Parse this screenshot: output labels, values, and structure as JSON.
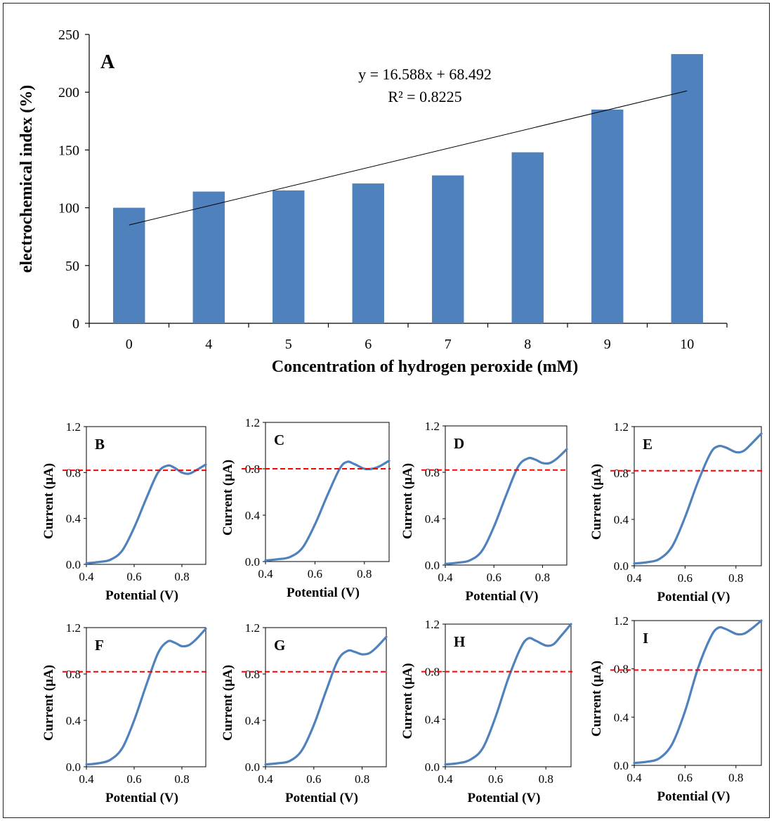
{
  "chart_data": [
    {
      "type": "bar",
      "panel_label": "A",
      "categories": [
        "0",
        "4",
        "5",
        "6",
        "7",
        "8",
        "9",
        "10"
      ],
      "values": [
        100,
        114,
        115,
        121,
        128,
        148,
        185,
        233
      ],
      "xlabel": "Concentration of hydrogen peroxide (mM)",
      "ylabel": "electrochemical index (%)",
      "ylim": [
        0,
        250
      ],
      "yticks": [
        "0",
        "50",
        "100",
        "150",
        "200",
        "250"
      ],
      "bar_color": "#4f81bd",
      "grid": false,
      "trendline": {
        "type": "linear",
        "slope": 16.588,
        "intercept": 68.492,
        "equation": "y = 16.588x + 68.492",
        "r_squared": "R² = 0.8225",
        "color": "#000000"
      }
    },
    {
      "type": "line",
      "panel_label": "B",
      "xlabel": "Potential (V)",
      "ylabel": "Current  (µA)",
      "xlim": [
        0.4,
        0.9
      ],
      "ylim": [
        0,
        1.2
      ],
      "xticks": [
        "0.4",
        "0.6",
        "0.8"
      ],
      "yticks": [
        "0.0",
        "0.4",
        "0.8",
        "1.2"
      ],
      "reference_line": 0.82,
      "line_color": "#4f81bd",
      "ref_color": "#ff0000",
      "series": [
        {
          "x": [
            0.4,
            0.45,
            0.5,
            0.55,
            0.6,
            0.65,
            0.7,
            0.74,
            0.77,
            0.8,
            0.83,
            0.86,
            0.9
          ],
          "y": [
            0.01,
            0.02,
            0.04,
            0.12,
            0.32,
            0.57,
            0.8,
            0.86,
            0.84,
            0.8,
            0.79,
            0.82,
            0.87
          ]
        }
      ]
    },
    {
      "type": "line",
      "panel_label": "C",
      "xlabel": "Potential (V)",
      "ylabel": "Current  (µA)",
      "xlim": [
        0.4,
        0.9
      ],
      "ylim": [
        0,
        1.2
      ],
      "xticks": [
        "0.4",
        "0.6",
        "0.8"
      ],
      "yticks": [
        "0.0",
        "0.4",
        "0.8",
        "1.2"
      ],
      "reference_line": 0.8,
      "line_color": "#4f81bd",
      "ref_color": "#ff0000",
      "series": [
        {
          "x": [
            0.4,
            0.45,
            0.5,
            0.55,
            0.6,
            0.65,
            0.7,
            0.73,
            0.76,
            0.8,
            0.83,
            0.86,
            0.9
          ],
          "y": [
            0.01,
            0.02,
            0.04,
            0.12,
            0.32,
            0.57,
            0.8,
            0.86,
            0.84,
            0.8,
            0.8,
            0.82,
            0.87
          ]
        }
      ]
    },
    {
      "type": "line",
      "panel_label": "D",
      "xlabel": "Potential (V)",
      "ylabel": "Current  (µA)",
      "xlim": [
        0.4,
        0.9
      ],
      "ylim": [
        0,
        1.2
      ],
      "xticks": [
        "0.4",
        "0.6",
        "0.8"
      ],
      "yticks": [
        "0.0",
        "0.4",
        "0.8",
        "1.2"
      ],
      "reference_line": 0.82,
      "line_color": "#4f81bd",
      "ref_color": "#ff0000",
      "series": [
        {
          "x": [
            0.4,
            0.45,
            0.5,
            0.55,
            0.6,
            0.65,
            0.7,
            0.74,
            0.77,
            0.8,
            0.83,
            0.86,
            0.9
          ],
          "y": [
            0.01,
            0.02,
            0.04,
            0.12,
            0.33,
            0.6,
            0.85,
            0.92,
            0.91,
            0.88,
            0.88,
            0.92,
            1.0
          ]
        }
      ]
    },
    {
      "type": "line",
      "panel_label": "E",
      "xlabel": "Potential (V)",
      "ylabel": "Current  (µA)",
      "xlim": [
        0.4,
        0.9
      ],
      "ylim": [
        0,
        1.2
      ],
      "xticks": [
        "0.4",
        "0.6",
        "0.8"
      ],
      "yticks": [
        "0.0",
        "0.4",
        "0.8",
        "1.2"
      ],
      "reference_line": 0.82,
      "line_color": "#4f81bd",
      "ref_color": "#ff0000",
      "series": [
        {
          "x": [
            0.4,
            0.45,
            0.5,
            0.55,
            0.6,
            0.65,
            0.7,
            0.73,
            0.76,
            0.8,
            0.83,
            0.86,
            0.9
          ],
          "y": [
            0.02,
            0.03,
            0.06,
            0.17,
            0.42,
            0.72,
            0.97,
            1.03,
            1.02,
            0.98,
            0.99,
            1.05,
            1.14
          ]
        }
      ]
    },
    {
      "type": "line",
      "panel_label": "F",
      "xlabel": "Potential (V)",
      "ylabel": "Current  (µA)",
      "xlim": [
        0.4,
        0.9
      ],
      "ylim": [
        0,
        1.2
      ],
      "xticks": [
        "0.4",
        "0.6",
        "0.8"
      ],
      "yticks": [
        "0.0",
        "0.4",
        "0.8",
        "1.2"
      ],
      "reference_line": 0.82,
      "line_color": "#4f81bd",
      "ref_color": "#ff0000",
      "series": [
        {
          "x": [
            0.4,
            0.45,
            0.5,
            0.55,
            0.6,
            0.65,
            0.7,
            0.74,
            0.77,
            0.8,
            0.83,
            0.86,
            0.9
          ],
          "y": [
            0.02,
            0.03,
            0.06,
            0.16,
            0.4,
            0.7,
            0.98,
            1.08,
            1.07,
            1.04,
            1.05,
            1.1,
            1.19
          ]
        }
      ]
    },
    {
      "type": "line",
      "panel_label": "G",
      "xlabel": "Potential (V)",
      "ylabel": "Current  (µA)",
      "xlim": [
        0.4,
        0.9
      ],
      "ylim": [
        0,
        1.2
      ],
      "xticks": [
        "0.4",
        "0.6",
        "0.8"
      ],
      "yticks": [
        "0.0",
        "0.4",
        "0.8",
        "1.2"
      ],
      "reference_line": 0.82,
      "line_color": "#4f81bd",
      "ref_color": "#ff0000",
      "series": [
        {
          "x": [
            0.4,
            0.45,
            0.5,
            0.55,
            0.6,
            0.65,
            0.7,
            0.74,
            0.77,
            0.8,
            0.83,
            0.86,
            0.9
          ],
          "y": [
            0.02,
            0.03,
            0.05,
            0.14,
            0.36,
            0.65,
            0.92,
            1.0,
            0.99,
            0.97,
            0.98,
            1.03,
            1.12
          ]
        }
      ]
    },
    {
      "type": "line",
      "panel_label": "H",
      "xlabel": "Potential (V)",
      "ylabel": "Current  (µA)",
      "xlim": [
        0.4,
        0.9
      ],
      "ylim": [
        0,
        1.2
      ],
      "xticks": [
        "0.4",
        "0.6",
        "0.8"
      ],
      "yticks": [
        "0.0",
        "0.4",
        "0.8",
        "1.2"
      ],
      "reference_line": 0.8,
      "line_color": "#4f81bd",
      "ref_color": "#ff0000",
      "series": [
        {
          "x": [
            0.4,
            0.45,
            0.5,
            0.55,
            0.6,
            0.65,
            0.7,
            0.73,
            0.76,
            0.8,
            0.83,
            0.86,
            0.9
          ],
          "y": [
            0.02,
            0.03,
            0.06,
            0.16,
            0.42,
            0.74,
            1.0,
            1.08,
            1.06,
            1.02,
            1.03,
            1.1,
            1.2
          ]
        }
      ]
    },
    {
      "type": "line",
      "panel_label": "I",
      "xlabel": "Potential (V)",
      "ylabel": "Current  (µA)",
      "xlim": [
        0.4,
        0.9
      ],
      "ylim": [
        0,
        1.2
      ],
      "xticks": [
        "0.4",
        "0.6",
        "0.8"
      ],
      "yticks": [
        "0.0",
        "0.4",
        "0.8",
        "1.2"
      ],
      "reference_line": 0.79,
      "line_color": "#4f81bd",
      "ref_color": "#ff0000",
      "series": [
        {
          "x": [
            0.4,
            0.45,
            0.5,
            0.55,
            0.6,
            0.65,
            0.7,
            0.73,
            0.76,
            0.8,
            0.83,
            0.86,
            0.9
          ],
          "y": [
            0.02,
            0.03,
            0.06,
            0.18,
            0.45,
            0.8,
            1.06,
            1.14,
            1.13,
            1.09,
            1.09,
            1.13,
            1.2
          ]
        }
      ]
    }
  ]
}
